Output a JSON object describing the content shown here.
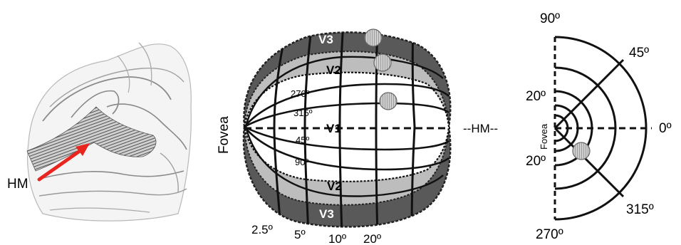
{
  "brain": {
    "hm_label": "HM",
    "arrow_color": "#e8251f"
  },
  "flatmap": {
    "fovea_label": "Fovea",
    "areas": {
      "v1": "V1",
      "v2_top": "V2",
      "v2_bottom": "V2",
      "v3_top": "V3",
      "v3_bottom": "V3"
    },
    "angle_labels": [
      "270º",
      "315º",
      "45º",
      "90º"
    ],
    "eccentricity_labels": [
      "2.5º",
      "5º",
      "10º",
      "20º"
    ],
    "colors": {
      "v2_fill": "#bdbdbd",
      "v3_fill": "#595959",
      "marker_fill": "#c8c8c8"
    }
  },
  "hm_connector": "--HM--",
  "polar": {
    "fovea_label": "Fovea",
    "angle_labels": {
      "top": "90º",
      "upper_right": "45º",
      "right": "0º",
      "lower_right": "315º",
      "bottom": "270º"
    },
    "eccentricity_labels": {
      "upper": "20º",
      "lower": "20º"
    }
  }
}
